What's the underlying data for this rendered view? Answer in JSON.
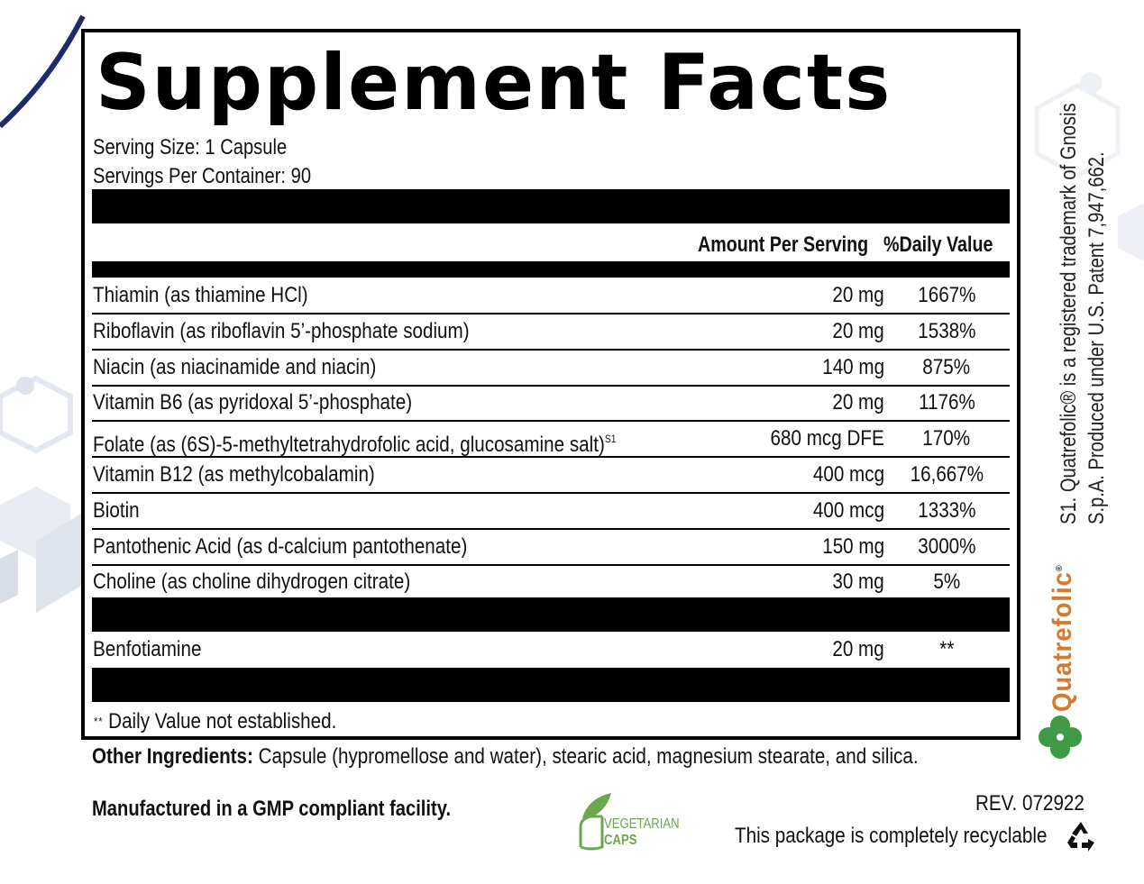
{
  "title": "Supplement Facts",
  "serving_size": "Serving Size: 1 Capsule",
  "servings_per_container": "Servings Per Container: 90",
  "headers": {
    "amount": "Amount Per Serving",
    "daily_value": "%Daily Value"
  },
  "nutrients": [
    {
      "name": "Thiamin (as thiamine HCl)",
      "amount": "20 mg",
      "dv": "1667%"
    },
    {
      "name": "Riboflavin (as riboflavin 5’-phosphate sodium)",
      "amount": "20 mg",
      "dv": "1538%"
    },
    {
      "name": "Niacin (as niacinamide and niacin)",
      "amount": "140 mg",
      "dv": "875%"
    },
    {
      "name": "Vitamin B6 (as pyridoxal 5’-phosphate)",
      "amount": "20 mg",
      "dv": "1176%"
    },
    {
      "name": "Folate (as (6S)-5-methyltetrahydrofolic acid, glucosamine salt)",
      "sup": "S1",
      "amount": "680 mcg DFE",
      "dv": "170%"
    },
    {
      "name": "Vitamin B12 (as methylcobalamin)",
      "amount": "400 mcg",
      "dv": "16,667%"
    },
    {
      "name": "Biotin",
      "amount": "400 mcg",
      "dv": "1333%"
    },
    {
      "name": "Pantothenic Acid (as d-calcium pantothenate)",
      "amount": "150 mg",
      "dv": "3000%"
    },
    {
      "name": "Choline (as choline dihydrogen citrate)",
      "amount": "30 mg",
      "dv": "5%"
    }
  ],
  "other_nutrients": [
    {
      "name": "Benfotiamine",
      "amount": "20 mg",
      "dv": "**"
    }
  ],
  "footnote": {
    "marker": "**",
    "text": "Daily Value not established."
  },
  "other_ingredients": {
    "label": "Other Ingredients:",
    "text": "Capsule (hypromellose and water), stearic acid, magnesium stearate, and silica."
  },
  "manufactured": "Manufactured in a GMP compliant facility.",
  "revision": "REV. 072922",
  "recyclable": "This package is completely recyclable",
  "vegetarian_badge": {
    "line1": "VEGETARIAN",
    "line2": "CAPS",
    "color": "#6aa84f",
    "icon": "leaf-capsule-icon"
  },
  "side_note": {
    "line1": "S1. Quatrefolic® is a registered trademark of Gnosis",
    "line2": "S.p.A. Produced under U.S. Patent 7,947,662."
  },
  "brand_logo": {
    "text": "Quatrefolic",
    "mark": "®",
    "color": "#d9772b",
    "icon": "clover-icon",
    "icon_color": "#3f9a46"
  },
  "colors": {
    "rule": "#000000",
    "accent_navy": "#1f2a6b"
  }
}
